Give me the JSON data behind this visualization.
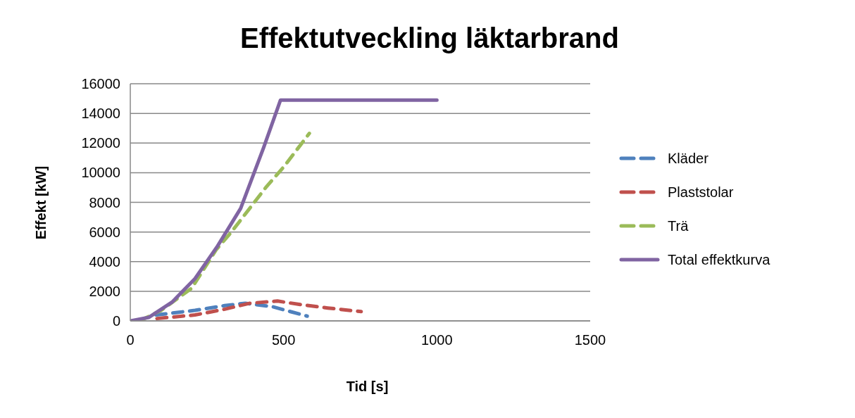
{
  "chart_data": {
    "type": "line",
    "title": "Effektutveckling läktarbrand",
    "xlabel": "Tid [s]",
    "ylabel": "Effekt [kW]",
    "xlim": [
      0,
      1500
    ],
    "xticks": [
      0,
      500,
      1000,
      1500
    ],
    "ylim": [
      0,
      16000
    ],
    "yticks": [
      0,
      2000,
      4000,
      6000,
      8000,
      10000,
      12000,
      14000,
      16000
    ],
    "grid": "y",
    "legend": "right",
    "marker": "none",
    "series": [
      {
        "name": "Kläder",
        "color": "#4f81bd",
        "line_style": "dashed",
        "x": [
          84,
          211,
          308,
          375,
          465,
          577
        ],
        "values": [
          400,
          710,
          1030,
          1190,
          950,
          320
        ]
      },
      {
        "name": "Plaststolar",
        "color": "#c0504d",
        "line_style": "dashed",
        "x": [
          87,
          211,
          308,
          390,
          480,
          555,
          644,
          753
        ],
        "values": [
          160,
          400,
          790,
          1190,
          1340,
          1100,
          870,
          630
        ]
      },
      {
        "name": "Trä",
        "color": "#9bbb59",
        "line_style": "dashed",
        "x": [
          30,
          100,
          200,
          280,
          330,
          442,
          502,
          584
        ],
        "values": [
          0,
          700,
          2200,
          4800,
          6000,
          9000,
          10430,
          12650
        ]
      },
      {
        "name": "Total effektkurva",
        "color": "#8064a2",
        "line_style": "solid",
        "x": [
          0,
          61,
          136,
          211,
          285,
          360,
          435,
          490,
          1000
        ],
        "values": [
          0,
          240,
          1260,
          2850,
          5060,
          7590,
          11700,
          14900,
          14900
        ]
      }
    ]
  }
}
